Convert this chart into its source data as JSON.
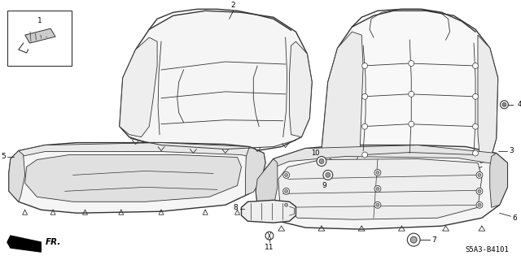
{
  "bg_color": "#ffffff",
  "line_color": "#333333",
  "part_number": "S5A3-B4101",
  "fr_label": "FR."
}
